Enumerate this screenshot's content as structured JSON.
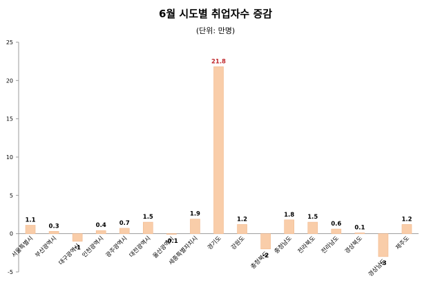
{
  "chart_data": {
    "type": "bar",
    "title": "6월 시도별 취업자수 증감",
    "subtitle": "(단위: 만명)",
    "xlabel": "",
    "ylabel": "",
    "ylim": [
      -5,
      25
    ],
    "yticks": [
      -5,
      0,
      5,
      10,
      15,
      20,
      25
    ],
    "grid": false,
    "legend": "none",
    "categories": [
      "서울특별시",
      "부산광역시",
      "대구광역시",
      "인천광역시",
      "광주광역시",
      "대전광역시",
      "울산광역시",
      "세종특별자치시",
      "경기도",
      "강원도",
      "충청북도",
      "충청남도",
      "전라북도",
      "전라남도",
      "경상북도",
      "경상남도",
      "제주도"
    ],
    "values": [
      1.1,
      0.3,
      -1,
      0.4,
      0.7,
      1.5,
      -0.1,
      1.9,
      21.8,
      1.2,
      -2,
      1.8,
      1.5,
      0.6,
      0.1,
      -3,
      1.2
    ],
    "value_labels": [
      "1.1",
      "0.3",
      "-1",
      "0.4",
      "0.7",
      "1.5",
      "-0.1",
      "1.9",
      "21.8",
      "1.2",
      "-2",
      "1.8",
      "1.5",
      "0.6",
      "0.1",
      "-3",
      "1.2"
    ],
    "bar_color": "#f9cda9",
    "bar_stroke": "#f2b98d",
    "highlight_label_color": "#c0282d",
    "highlight_index": 8
  }
}
